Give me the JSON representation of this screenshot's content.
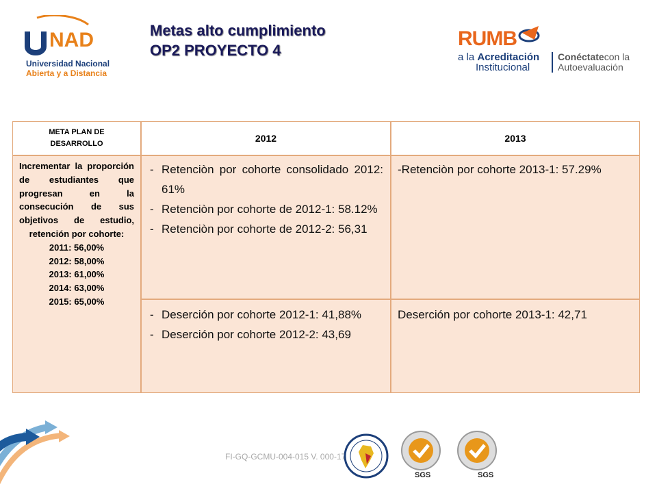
{
  "header": {
    "title_line1": "Metas alto cumplimiento",
    "title_line2": "OP2  PROYECTO 4",
    "unad_logo": {
      "line1": "Universidad Nacional",
      "line2": "Abierta y a Distancia"
    },
    "rumbo_logo": {
      "word": "RUMB",
      "line_a_prefix": "a la ",
      "line_a_bold": "Acreditación",
      "line_b": "Institucional",
      "right_bold": "Conéctate",
      "right_rest": "con la",
      "right_line2": "Autoevaluación"
    }
  },
  "table": {
    "headers": {
      "meta": "META PLAN DE DESARROLLO",
      "y2012": "2012",
      "y2013": "2013"
    },
    "meta": {
      "goal": "Incrementar la proporción de estudiantes que progresan en la consecución de sus objetivos de estudio, retención por cohorte:",
      "years": [
        "2011: 56,00%",
        "2012: 58,00%",
        "2013: 61,00%",
        "2014: 63,00%",
        "2015: 65,00%"
      ]
    },
    "retencion_2012": [
      "Retenciòn por cohorte consolidado 2012: 61%",
      "Retenciòn por cohorte de 2012-1: 58.12%",
      "Retenciòn por cohorte de 2012-2: 56,31"
    ],
    "retencion_2013": "-Retenciòn por cohorte 2013-1: 57.29%",
    "desercion_2012": [
      "Deserción por cohorte 2012-1: 41,88%",
      "Deserción por cohorte 2012-2: 43,69"
    ],
    "desercion_2013": "Deserción por cohorte 2013-1: 42,71"
  },
  "footer": {
    "code": "FI-GQ-GCMU-004-015  V. 000-17-04-2013",
    "sgs_label": "SGS"
  },
  "colors": {
    "title": "#1a1a5a",
    "cell_fill": "#fbe5d6",
    "cell_border": "#e3aa7d",
    "unad_blue": "#1c3f7a",
    "unad_orange": "#e8811a"
  }
}
